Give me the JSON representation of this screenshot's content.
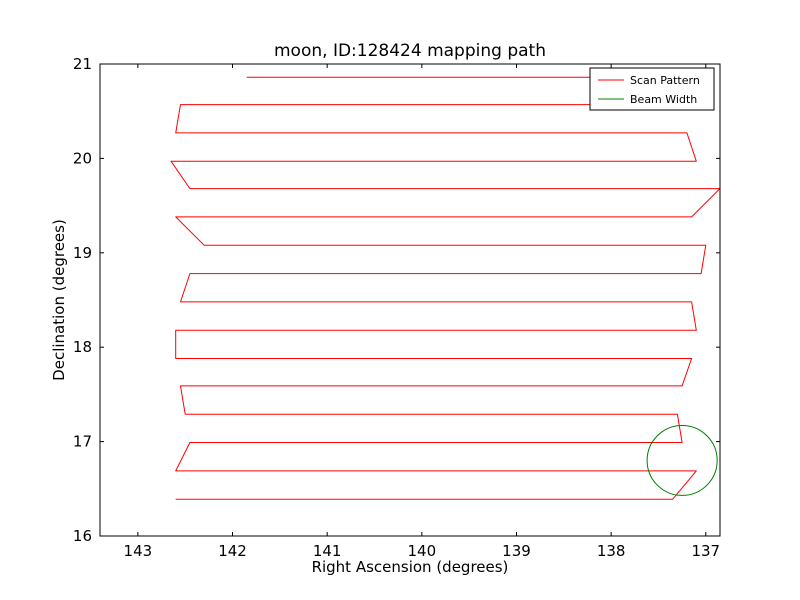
{
  "chart_data": {
    "type": "line",
    "title": "moon, ID:128424 mapping path",
    "xlabel": "Right Ascension (degrees)",
    "ylabel": "Declination (degrees)",
    "xlim": [
      143.4,
      136.85
    ],
    "ylim": [
      16,
      21
    ],
    "x_ticks": [
      143,
      142,
      141,
      140,
      139,
      138,
      137
    ],
    "y_ticks": [
      16,
      17,
      18,
      19,
      20,
      21
    ],
    "grid": false,
    "legend_position": "top-right",
    "series": [
      {
        "name": "Scan Pattern",
        "color": "#ff0000",
        "kind": "raster-scan",
        "rows": [
          {
            "dec": 16.39,
            "ra_start": 142.6,
            "ra_end": 137.35
          },
          {
            "dec": 16.69,
            "ra_start": 142.6,
            "ra_end": 137.1
          },
          {
            "dec": 16.99,
            "ra_start": 142.45,
            "ra_end": 137.25
          },
          {
            "dec": 17.29,
            "ra_start": 142.5,
            "ra_end": 137.3
          },
          {
            "dec": 17.59,
            "ra_start": 142.55,
            "ra_end": 137.25
          },
          {
            "dec": 17.88,
            "ra_start": 142.6,
            "ra_end": 137.15
          },
          {
            "dec": 18.18,
            "ra_start": 142.6,
            "ra_end": 137.1
          },
          {
            "dec": 18.48,
            "ra_start": 142.55,
            "ra_end": 137.15
          },
          {
            "dec": 18.78,
            "ra_start": 142.45,
            "ra_end": 137.05
          },
          {
            "dec": 19.08,
            "ra_start": 142.3,
            "ra_end": 137.0
          },
          {
            "dec": 19.38,
            "ra_start": 142.6,
            "ra_end": 137.15
          },
          {
            "dec": 19.68,
            "ra_start": 142.45,
            "ra_end": 136.85
          },
          {
            "dec": 19.97,
            "ra_start": 142.65,
            "ra_end": 137.1
          },
          {
            "dec": 20.27,
            "ra_start": 142.6,
            "ra_end": 137.2
          },
          {
            "dec": 20.57,
            "ra_start": 142.55,
            "ra_end": 137.85
          },
          {
            "dec": 20.86,
            "ra_start": 141.85,
            "ra_end": 137.85
          }
        ]
      },
      {
        "name": "Beam Width",
        "color": "#008000",
        "kind": "circle",
        "center": [
          137.25,
          16.8
        ],
        "radius": 0.37
      }
    ]
  }
}
